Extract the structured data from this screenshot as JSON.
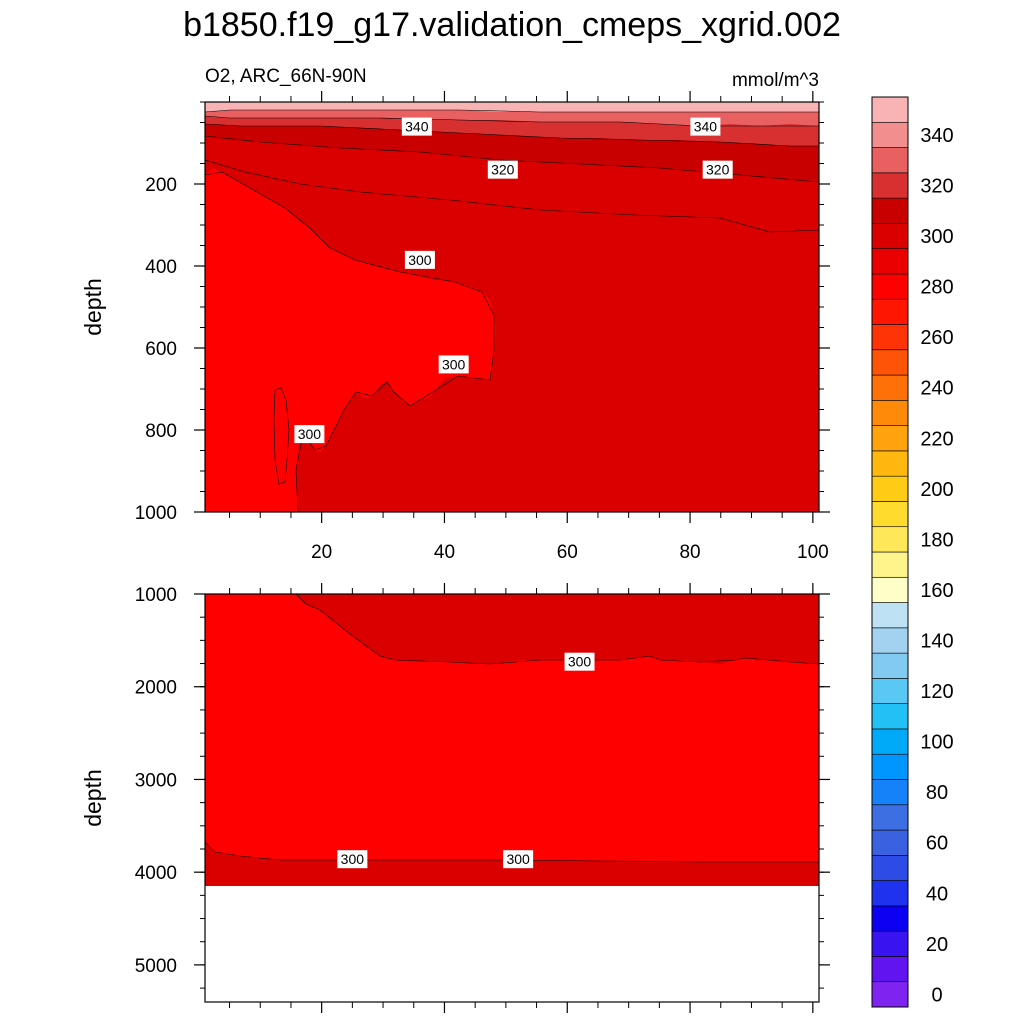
{
  "chart_data": {
    "type": "heatmap",
    "title": "b1850.f19_g17.validation_cmeps_xgrid.002",
    "subtitle_left": "O2, ARC_66N-90N",
    "subtitle_right": "mmol/m^3",
    "x_ticks": [
      "20",
      "40",
      "60",
      "80",
      "100"
    ],
    "xlim": [
      1,
      101
    ],
    "panels": [
      {
        "name": "upper",
        "ylabel": "depth",
        "ylim": [
          0,
          1000
        ],
        "y_ticks": [
          "200",
          "400",
          "600",
          "800",
          "1000"
        ],
        "contour_labels": [
          {
            "text": "340",
            "x": 35.5,
            "y": 60
          },
          {
            "text": "340",
            "x": 82.5,
            "y": 60
          },
          {
            "text": "320",
            "x": 49.5,
            "y": 165
          },
          {
            "text": "320",
            "x": 84.5,
            "y": 165
          },
          {
            "text": "300",
            "x": 36,
            "y": 385
          },
          {
            "text": "300",
            "x": 41.5,
            "y": 640
          },
          {
            "text": "300",
            "x": 18,
            "y": 810
          }
        ]
      },
      {
        "name": "lower",
        "ylabel": "depth",
        "ylim": [
          1000,
          5400
        ],
        "y_ticks": [
          "1000",
          "2000",
          "3000",
          "4000",
          "5000"
        ],
        "contour_labels": [
          {
            "text": "300",
            "x": 62,
            "y": 1730
          },
          {
            "text": "300",
            "x": 25,
            "y": 3860
          },
          {
            "text": "300",
            "x": 52,
            "y": 3860
          }
        ]
      }
    ],
    "colorbar": {
      "labels": [
        "0",
        "20",
        "40",
        "60",
        "80",
        "100",
        "120",
        "140",
        "160",
        "180",
        "200",
        "220",
        "240",
        "260",
        "280",
        "300",
        "320",
        "340"
      ],
      "levels": [
        0,
        10,
        20,
        30,
        40,
        50,
        60,
        70,
        80,
        90,
        100,
        110,
        120,
        130,
        140,
        150,
        160,
        170,
        180,
        190,
        200,
        210,
        220,
        230,
        240,
        250,
        260,
        270,
        280,
        290,
        300,
        310,
        320,
        330,
        340,
        350
      ],
      "colors": [
        "#7f24f0",
        "#6114f0",
        "#3a14f0",
        "#0b00f2",
        "#1f33ee",
        "#2d4ce6",
        "#3a62e0",
        "#3d6ee2",
        "#1682fa",
        "#0096ff",
        "#00aaf8",
        "#22c0f4",
        "#5ac8f4",
        "#82caf0",
        "#a2d2f0",
        "#bee2f4",
        "#fefec8",
        "#fef48c",
        "#fee85a",
        "#fedc2e",
        "#fecc14",
        "#feb810",
        "#fea20e",
        "#fe8a0a",
        "#fe7008",
        "#fe5408",
        "#fe3406",
        "#fe1600",
        "#fe0000",
        "#ea0000",
        "#da0000",
        "#c80000",
        "#d83030",
        "#e86060",
        "#f28e8e",
        "#f8b4b4"
      ]
    }
  }
}
